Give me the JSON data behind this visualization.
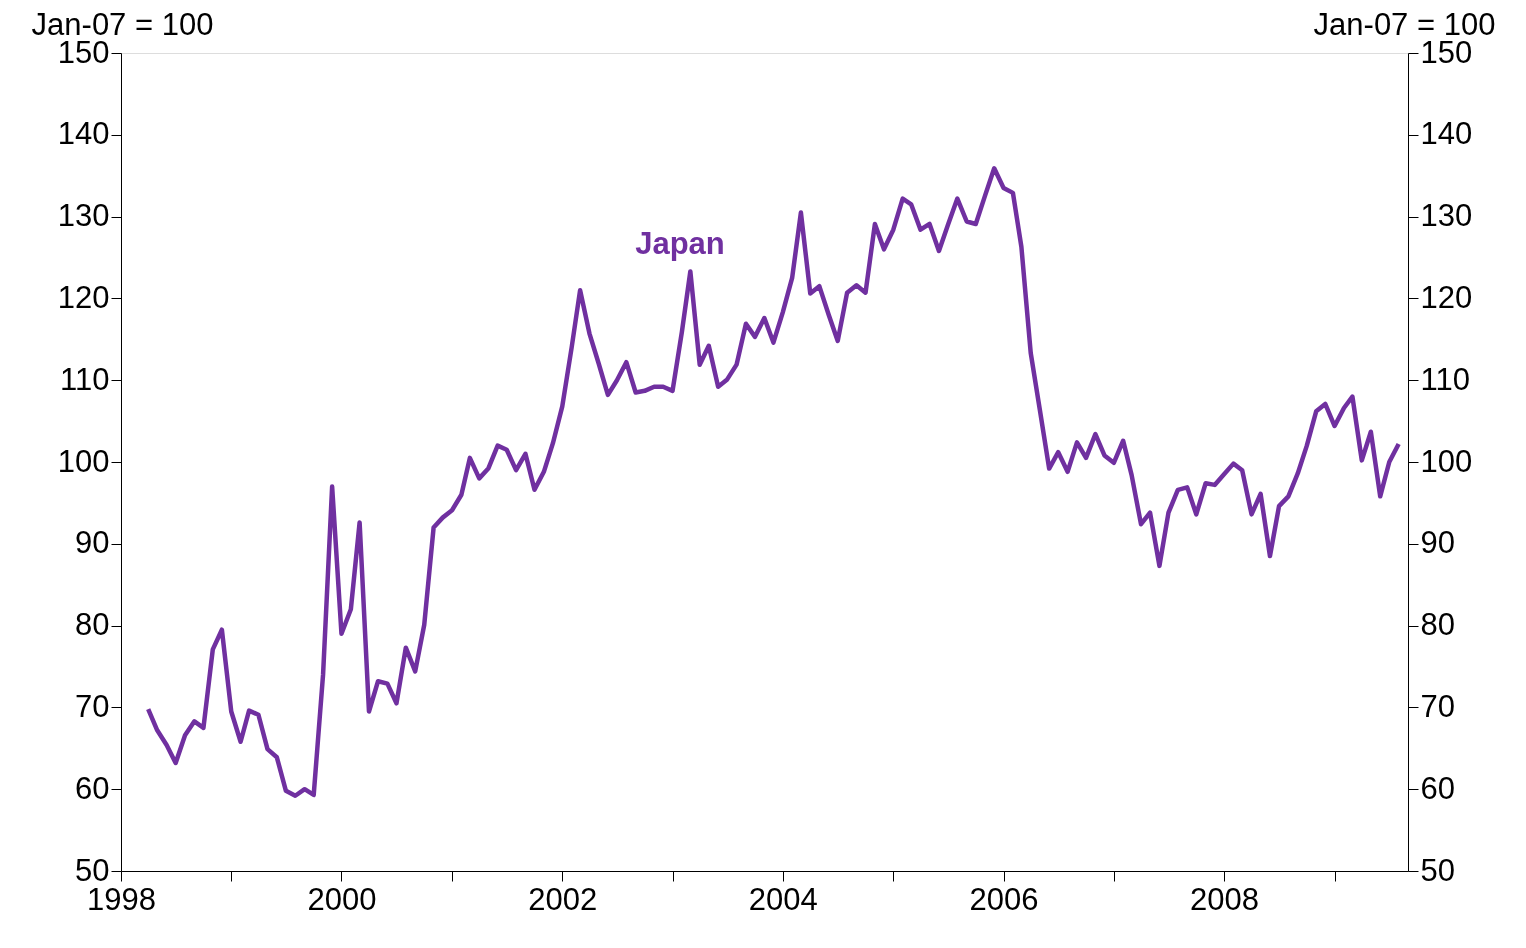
{
  "chart_data": {
    "type": "line",
    "ylabel": "Jan-07 = 100",
    "y2label": "Jan-07 = 100",
    "x": [
      "1998-04",
      "1998-05",
      "1998-06",
      "1998-07",
      "1998-08",
      "1998-09",
      "1998-10",
      "1998-11",
      "1998-12",
      "1999-01",
      "1999-02",
      "1999-03",
      "1999-04",
      "1999-05",
      "1999-06",
      "1999-07",
      "1999-08",
      "1999-09",
      "1999-10",
      "1999-11",
      "1999-12",
      "2000-01",
      "2000-02",
      "2000-03",
      "2000-04",
      "2000-05",
      "2000-06",
      "2000-07",
      "2000-08",
      "2000-09",
      "2000-10",
      "2000-11",
      "2000-12",
      "2001-01",
      "2001-02",
      "2001-03",
      "2001-04",
      "2001-05",
      "2001-06",
      "2001-07",
      "2001-08",
      "2001-09",
      "2001-10",
      "2001-11",
      "2001-12",
      "2002-01",
      "2002-02",
      "2002-03",
      "2002-04",
      "2002-05",
      "2002-06",
      "2002-07",
      "2002-08",
      "2002-09",
      "2002-10",
      "2002-11",
      "2002-12",
      "2003-01",
      "2003-02",
      "2003-03",
      "2003-04",
      "2003-05",
      "2003-06",
      "2003-07",
      "2003-08",
      "2003-09",
      "2003-10",
      "2003-11",
      "2003-12",
      "2004-01",
      "2004-02",
      "2004-03",
      "2004-04",
      "2004-05",
      "2004-06",
      "2004-07",
      "2004-08",
      "2004-09",
      "2004-10",
      "2004-11",
      "2004-12",
      "2005-01",
      "2005-02",
      "2005-03",
      "2005-04",
      "2005-05",
      "2005-06",
      "2005-07",
      "2005-08",
      "2005-09",
      "2005-10",
      "2005-11",
      "2005-12",
      "2006-01",
      "2006-02",
      "2006-03",
      "2006-04",
      "2006-05",
      "2006-06",
      "2006-07",
      "2006-08",
      "2006-09",
      "2006-10",
      "2006-11",
      "2006-12",
      "2007-01",
      "2007-02",
      "2007-03",
      "2007-04",
      "2007-05",
      "2007-06",
      "2007-07",
      "2007-08",
      "2007-09",
      "2007-10",
      "2007-11",
      "2007-12",
      "2008-01",
      "2008-02",
      "2008-03",
      "2008-04",
      "2008-05",
      "2008-06",
      "2008-07",
      "2008-08",
      "2008-09",
      "2008-10",
      "2008-11",
      "2008-12",
      "2009-01",
      "2009-02",
      "2009-03",
      "2009-04",
      "2009-05",
      "2009-06",
      "2009-07",
      "2009-08"
    ],
    "series": [
      {
        "name": "Japan",
        "color": "#7030a0",
        "values": [
          69.8,
          67.2,
          65.4,
          63.2,
          66.6,
          68.3,
          67.5,
          77.1,
          79.5,
          69.5,
          65.8,
          69.6,
          69.1,
          64.9,
          63.9,
          59.8,
          59.2,
          60.0,
          59.3,
          74.0,
          97.0,
          79.0,
          82.0,
          92.6,
          69.5,
          73.2,
          72.9,
          70.5,
          77.3,
          74.4,
          80.1,
          92.0,
          93.2,
          94.1,
          96.0,
          100.5,
          98.0,
          99.2,
          102.0,
          101.5,
          99.0,
          101.0,
          96.6,
          98.8,
          102.3,
          106.8,
          114.0,
          121.0,
          115.7,
          112.1,
          108.2,
          110.0,
          112.2,
          108.5,
          108.7,
          109.2,
          109.2,
          108.7,
          115.9,
          123.3,
          111.9,
          114.2,
          109.2,
          110.1,
          111.9,
          116.9,
          115.3,
          117.6,
          114.6,
          118.3,
          122.5,
          130.5,
          120.6,
          121.5,
          118.0,
          114.8,
          120.7,
          121.6,
          120.7,
          129.1,
          126.0,
          128.4,
          132.2,
          131.5,
          128.4,
          129.1,
          125.8,
          129.0,
          132.2,
          129.4,
          129.1,
          132.6,
          135.9,
          133.5,
          132.9,
          126.3,
          113.3,
          106.4,
          99.2,
          101.2,
          98.8,
          102.4,
          100.5,
          103.4,
          100.8,
          99.9,
          102.6,
          98.4,
          92.4,
          93.8,
          87.3,
          93.8,
          96.6,
          96.9,
          93.6,
          97.4,
          97.2,
          98.5,
          99.8,
          99.0,
          93.6,
          96.1,
          88.5,
          94.6,
          95.8,
          98.6,
          102.0,
          106.2,
          107.1,
          104.4,
          106.6,
          108.0,
          100.2,
          103.7,
          95.8,
          100.0,
          102.2
        ]
      }
    ],
    "xlim": [
      "1998-01",
      "2009-09"
    ],
    "xticks": [
      "1998",
      {
        "value": "1999",
        "label": null
      },
      "2000",
      {
        "value": "2001",
        "label": null
      },
      "2002",
      {
        "value": "2003",
        "label": null
      },
      "2004",
      {
        "value": "2005",
        "label": null
      },
      "2006",
      {
        "value": "2007",
        "label": null
      },
      "2008",
      {
        "value": "2009",
        "label": null
      }
    ],
    "ylim": [
      50,
      150
    ],
    "yticks": [
      50,
      60,
      70,
      80,
      90,
      100,
      110,
      120,
      130,
      140,
      150
    ],
    "y2lim": [
      50,
      150
    ],
    "y2ticks": [
      50,
      60,
      70,
      80,
      90,
      100,
      110,
      120,
      130,
      140,
      150
    ],
    "grid": false,
    "legend": false,
    "marker": "none",
    "line_style": "solid"
  }
}
